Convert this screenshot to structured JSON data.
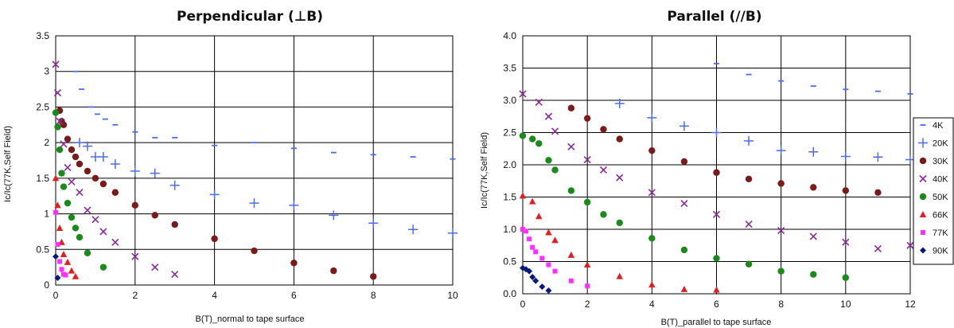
{
  "chart_data": [
    {
      "type": "scatter",
      "title": "Perpendicular (⊥B)",
      "xlabel": "B(T)_normal to tape surface",
      "ylabel": "Ic/Ic(77K,Self Field)",
      "xlim": [
        0,
        10
      ],
      "ylim": [
        0,
        3.5
      ],
      "xticks": [
        "0",
        "2",
        "4",
        "6",
        "8",
        "10"
      ],
      "yticks": [
        "0",
        "0.5",
        "1",
        "1.5",
        "2",
        "2.5",
        "3",
        "3.5"
      ],
      "grid": true,
      "series": [
        {
          "name": "4K",
          "color": "#4a6cf0",
          "marker": "dash",
          "x": [
            0.5,
            0.65,
            0.9,
            1.05,
            1.25,
            1.5,
            2,
            2.5,
            3,
            4,
            5,
            6,
            7,
            8,
            9,
            10
          ],
          "y": [
            3.0,
            2.75,
            2.5,
            2.4,
            2.33,
            2.25,
            2.15,
            2.07,
            2.07,
            1.96,
            2.0,
            1.92,
            1.86,
            1.83,
            1.8,
            1.77
          ]
        },
        {
          "name": "20K",
          "color": "#4a6cf0",
          "marker": "plus",
          "x": [
            0.6,
            0.8,
            1.0,
            1.2,
            1.5,
            2,
            2.5,
            3,
            4,
            5,
            6,
            7,
            8,
            9,
            10
          ],
          "y": [
            2.0,
            1.95,
            1.8,
            1.8,
            1.7,
            1.6,
            1.57,
            1.4,
            1.27,
            1.15,
            1.12,
            0.98,
            0.87,
            0.78,
            0.73
          ]
        },
        {
          "name": "30K",
          "color": "#7a1a1a",
          "marker": "circle",
          "x": [
            0.1,
            0.15,
            0.2,
            0.3,
            0.4,
            0.5,
            0.6,
            0.8,
            1.0,
            1.2,
            1.5,
            2,
            2.5,
            3,
            4,
            5,
            6,
            7,
            8
          ],
          "y": [
            2.45,
            2.3,
            2.25,
            2.05,
            1.9,
            1.8,
            1.7,
            1.6,
            1.5,
            1.42,
            1.3,
            1.12,
            0.98,
            0.85,
            0.65,
            0.48,
            0.31,
            0.2,
            0.12
          ]
        },
        {
          "name": "40K",
          "color": "#8a2a9a",
          "marker": "x",
          "x": [
            0,
            0.05,
            0.1,
            0.2,
            0.3,
            0.4,
            0.6,
            0.8,
            1.0,
            1.2,
            1.5,
            2,
            2.5,
            3
          ],
          "y": [
            3.1,
            2.7,
            2.3,
            1.98,
            1.65,
            1.45,
            1.3,
            1.05,
            0.92,
            0.75,
            0.6,
            0.4,
            0.25,
            0.15
          ]
        },
        {
          "name": "50K",
          "color": "#1a8a1a",
          "marker": "circle",
          "x": [
            0,
            0.05,
            0.1,
            0.15,
            0.2,
            0.3,
            0.4,
            0.5,
            0.6,
            0.8,
            1.2
          ],
          "y": [
            2.42,
            2.22,
            1.9,
            1.57,
            1.38,
            1.15,
            0.95,
            0.8,
            0.67,
            0.45,
            0.25
          ]
        },
        {
          "name": "66K",
          "color": "#e02020",
          "marker": "triangle",
          "x": [
            0,
            0.05,
            0.1,
            0.15,
            0.2,
            0.3,
            0.4,
            0.5
          ],
          "y": [
            1.5,
            1.12,
            0.8,
            0.6,
            0.43,
            0.32,
            0.2,
            0.12
          ]
        },
        {
          "name": "77K",
          "color": "#ff30ff",
          "marker": "square",
          "x": [
            0,
            0.05,
            0.1,
            0.15,
            0.2,
            0.25
          ],
          "y": [
            1.02,
            0.57,
            0.33,
            0.22,
            0.15,
            0.14
          ]
        },
        {
          "name": "90K",
          "color": "#0a1a7a",
          "marker": "diamond",
          "x": [
            0,
            0.05
          ],
          "y": [
            0.4,
            0.1
          ]
        }
      ]
    },
    {
      "type": "scatter",
      "title": "Parallel (//B)",
      "xlabel": "B(T)_parallel to tape surface",
      "ylabel": "Ic/Ic(77K,Self Field)",
      "xlim": [
        0,
        12
      ],
      "ylim": [
        0,
        4.0
      ],
      "xticks": [
        "0",
        "2",
        "4",
        "6",
        "8",
        "10",
        "12"
      ],
      "yticks": [
        "0.0",
        "0.5",
        "1.0",
        "1.5",
        "2.0",
        "2.5",
        "3.0",
        "3.5",
        "4.0"
      ],
      "grid": true,
      "legend": "right",
      "series": [
        {
          "name": "4K",
          "color": "#4a6cf0",
          "marker": "dash",
          "x": [
            6,
            7,
            8,
            9,
            10,
            11,
            12
          ],
          "y": [
            3.57,
            3.4,
            3.3,
            3.22,
            3.17,
            3.14,
            3.1
          ]
        },
        {
          "name": "20K",
          "color": "#4a6cf0",
          "marker": "plus",
          "x": [
            3,
            4,
            5,
            6,
            7,
            8,
            9,
            10,
            11,
            12
          ],
          "y": [
            2.95,
            2.73,
            2.6,
            2.5,
            2.37,
            2.22,
            2.2,
            2.13,
            2.12,
            2.08
          ]
        },
        {
          "name": "30K",
          "color": "#7a1a1a",
          "marker": "circle",
          "x": [
            1.5,
            2,
            2.5,
            3,
            4,
            5,
            6,
            7,
            8,
            9,
            10,
            11
          ],
          "y": [
            2.88,
            2.72,
            2.55,
            2.4,
            2.22,
            2.05,
            1.88,
            1.78,
            1.71,
            1.65,
            1.6,
            1.57
          ]
        },
        {
          "name": "40K",
          "color": "#8a2a9a",
          "marker": "x",
          "x": [
            0,
            0.5,
            0.8,
            1.0,
            1.5,
            2,
            2.5,
            3,
            4,
            5,
            6,
            7,
            8,
            9,
            10,
            11,
            12
          ],
          "y": [
            3.1,
            2.97,
            2.75,
            2.52,
            2.28,
            2.08,
            1.92,
            1.8,
            1.57,
            1.4,
            1.23,
            1.08,
            0.98,
            0.89,
            0.8,
            0.7,
            0.75
          ]
        },
        {
          "name": "50K",
          "color": "#1a8a1a",
          "marker": "circle",
          "x": [
            0,
            0.3,
            0.5,
            0.8,
            1.0,
            1.5,
            2,
            2.5,
            3,
            4,
            5,
            6,
            7,
            8,
            9,
            10
          ],
          "y": [
            2.45,
            2.4,
            2.33,
            2.07,
            1.92,
            1.6,
            1.42,
            1.23,
            1.1,
            0.86,
            0.68,
            0.55,
            0.46,
            0.35,
            0.3,
            0.25
          ]
        },
        {
          "name": "66K",
          "color": "#e02020",
          "marker": "triangle",
          "x": [
            0,
            0.3,
            0.5,
            0.8,
            1.0,
            1.5,
            2,
            3,
            4,
            5,
            6
          ],
          "y": [
            1.52,
            1.43,
            1.2,
            0.95,
            0.83,
            0.6,
            0.45,
            0.27,
            0.14,
            0.07,
            0.06
          ]
        },
        {
          "name": "77K",
          "color": "#ff30ff",
          "marker": "square",
          "x": [
            0,
            0.1,
            0.2,
            0.3,
            0.4,
            0.6,
            0.8,
            1.0,
            1.5,
            2
          ],
          "y": [
            1.0,
            0.97,
            0.85,
            0.72,
            0.65,
            0.55,
            0.45,
            0.35,
            0.2,
            0.12
          ]
        },
        {
          "name": "90K",
          "color": "#0a1a7a",
          "marker": "diamond",
          "x": [
            0,
            0.1,
            0.2,
            0.3,
            0.4,
            0.6,
            0.8
          ],
          "y": [
            0.4,
            0.38,
            0.35,
            0.26,
            0.2,
            0.11,
            0.05
          ]
        }
      ]
    }
  ]
}
